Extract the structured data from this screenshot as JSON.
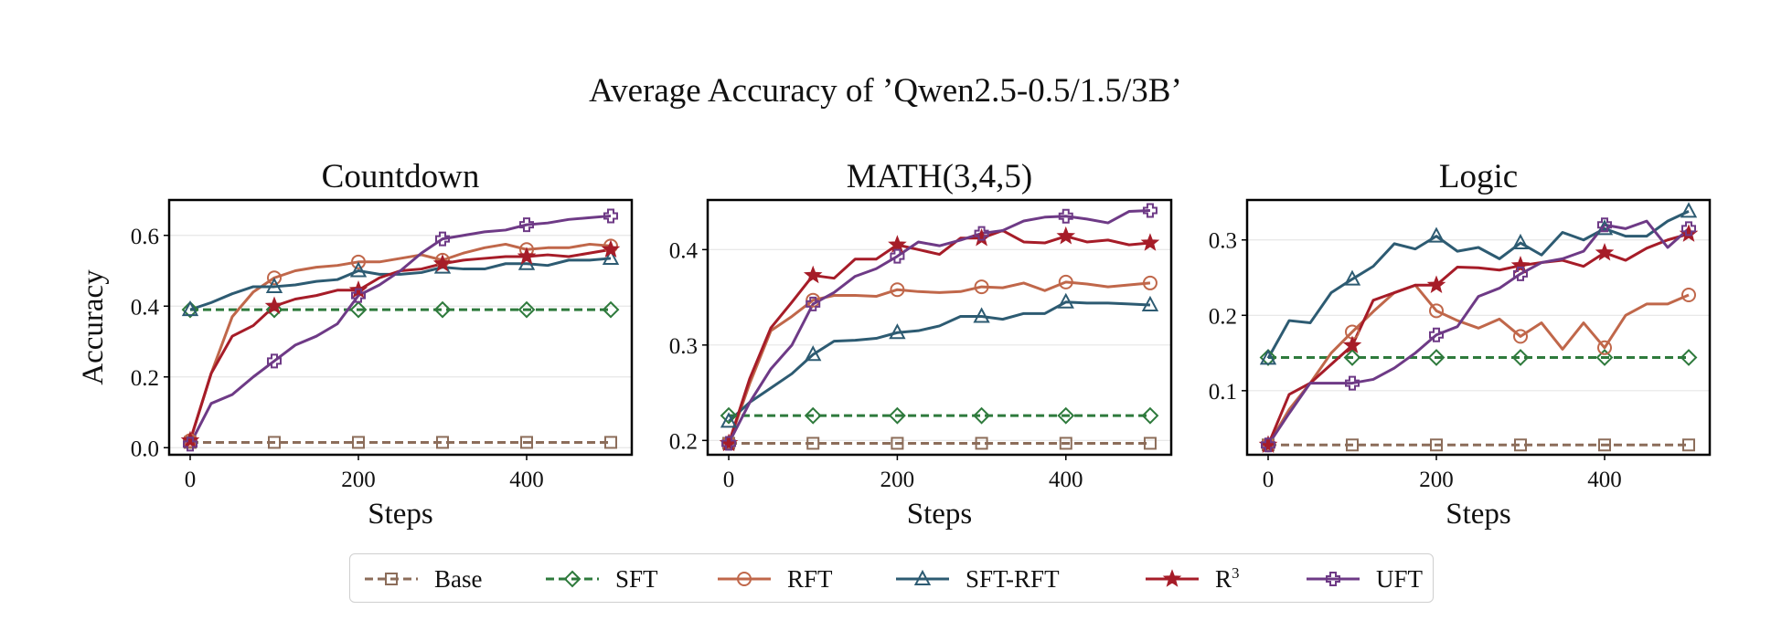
{
  "suptitle": "Average Accuracy of ’Qwen2.5-0.5/1.5/3B’",
  "legend": [
    {
      "label": "Base",
      "color": "#8c6d5a",
      "marker": "square",
      "dashed": true
    },
    {
      "label": "SFT",
      "color": "#2e7a3c",
      "marker": "diamond",
      "dashed": true
    },
    {
      "label": "RFT",
      "color": "#c0674a",
      "marker": "circle",
      "dashed": false
    },
    {
      "label": "SFT-RFT",
      "color": "#2d5b72",
      "marker": "triangle",
      "dashed": false
    },
    {
      "label": "R",
      "sup": "3",
      "color": "#a61c28",
      "marker": "star",
      "dashed": false
    },
    {
      "label": "UFT",
      "color": "#6e3a86",
      "marker": "plus",
      "dashed": false
    }
  ],
  "chart_data": [
    {
      "type": "line",
      "title": "Countdown",
      "xlabel": "Steps",
      "ylabel": "Accuracy",
      "xlim": [
        -25,
        525
      ],
      "ylim": [
        -0.02,
        0.7
      ],
      "xticks": [
        0,
        200,
        400
      ],
      "yticks": [
        0.0,
        0.2,
        0.4,
        0.6
      ],
      "ytick_labels": [
        "0.0",
        "0.2",
        "0.4",
        "0.6"
      ],
      "grid": true,
      "marker_x": [
        0,
        100,
        200,
        300,
        400,
        500
      ],
      "series": [
        {
          "name": "Base",
          "x": [
            0,
            100,
            200,
            300,
            400,
            500
          ],
          "values": [
            0.015,
            0.015,
            0.015,
            0.015,
            0.015,
            0.015
          ]
        },
        {
          "name": "SFT",
          "x": [
            0,
            100,
            200,
            300,
            400,
            500
          ],
          "values": [
            0.39,
            0.39,
            0.39,
            0.39,
            0.39,
            0.39
          ]
        },
        {
          "name": "RFT",
          "x": [
            0,
            25,
            50,
            75,
            100,
            125,
            150,
            175,
            200,
            225,
            250,
            275,
            300,
            325,
            350,
            375,
            400,
            425,
            450,
            475,
            500
          ],
          "values": [
            0.02,
            0.21,
            0.37,
            0.44,
            0.48,
            0.5,
            0.51,
            0.515,
            0.525,
            0.525,
            0.535,
            0.545,
            0.53,
            0.55,
            0.565,
            0.575,
            0.56,
            0.565,
            0.565,
            0.575,
            0.57
          ]
        },
        {
          "name": "SFT-RFT",
          "x": [
            0,
            25,
            50,
            75,
            100,
            125,
            150,
            175,
            200,
            225,
            250,
            275,
            300,
            325,
            350,
            375,
            400,
            425,
            450,
            475,
            500
          ],
          "values": [
            0.39,
            0.41,
            0.435,
            0.455,
            0.455,
            0.46,
            0.47,
            0.475,
            0.5,
            0.49,
            0.49,
            0.495,
            0.51,
            0.505,
            0.505,
            0.52,
            0.52,
            0.515,
            0.53,
            0.53,
            0.535
          ]
        },
        {
          "name": "R3",
          "x": [
            0,
            25,
            50,
            75,
            100,
            125,
            150,
            175,
            200,
            225,
            250,
            275,
            300,
            325,
            350,
            375,
            400,
            425,
            450,
            475,
            500
          ],
          "values": [
            0.02,
            0.21,
            0.315,
            0.345,
            0.4,
            0.42,
            0.43,
            0.445,
            0.445,
            0.48,
            0.5,
            0.505,
            0.52,
            0.53,
            0.535,
            0.54,
            0.54,
            0.545,
            0.54,
            0.55,
            0.56
          ]
        },
        {
          "name": "UFT",
          "x": [
            0,
            25,
            50,
            75,
            100,
            125,
            150,
            175,
            200,
            225,
            250,
            275,
            300,
            325,
            350,
            375,
            400,
            425,
            450,
            475,
            500
          ],
          "values": [
            0.01,
            0.125,
            0.15,
            0.2,
            0.245,
            0.29,
            0.315,
            0.35,
            0.43,
            0.46,
            0.5,
            0.55,
            0.59,
            0.6,
            0.61,
            0.615,
            0.63,
            0.635,
            0.645,
            0.65,
            0.655
          ]
        }
      ]
    },
    {
      "type": "line",
      "title": "MATH(3,4,5)",
      "xlabel": "Steps",
      "ylabel": "",
      "xlim": [
        -25,
        525
      ],
      "ylim": [
        0.185,
        0.452
      ],
      "xticks": [
        0,
        200,
        400
      ],
      "yticks": [
        0.2,
        0.3,
        0.4
      ],
      "ytick_labels": [
        "0.2",
        "0.3",
        "0.4"
      ],
      "grid": true,
      "marker_x": [
        0,
        100,
        200,
        300,
        400,
        500
      ],
      "series": [
        {
          "name": "Base",
          "x": [
            0,
            100,
            200,
            300,
            400,
            500
          ],
          "values": [
            0.197,
            0.197,
            0.197,
            0.197,
            0.197,
            0.197
          ]
        },
        {
          "name": "SFT",
          "x": [
            0,
            100,
            200,
            300,
            400,
            500
          ],
          "values": [
            0.226,
            0.226,
            0.226,
            0.226,
            0.226,
            0.226
          ]
        },
        {
          "name": "RFT",
          "x": [
            0,
            25,
            50,
            75,
            100,
            125,
            150,
            175,
            200,
            225,
            250,
            275,
            300,
            325,
            350,
            375,
            400,
            425,
            450,
            475,
            500
          ],
          "values": [
            0.197,
            0.26,
            0.315,
            0.33,
            0.347,
            0.352,
            0.352,
            0.351,
            0.358,
            0.356,
            0.355,
            0.356,
            0.361,
            0.36,
            0.365,
            0.357,
            0.366,
            0.364,
            0.361,
            0.363,
            0.365
          ]
        },
        {
          "name": "SFT-RFT",
          "x": [
            0,
            25,
            50,
            75,
            100,
            125,
            150,
            175,
            200,
            225,
            250,
            275,
            300,
            325,
            350,
            375,
            400,
            425,
            450,
            475,
            500
          ],
          "values": [
            0.22,
            0.24,
            0.255,
            0.27,
            0.29,
            0.304,
            0.305,
            0.307,
            0.313,
            0.315,
            0.32,
            0.33,
            0.33,
            0.327,
            0.333,
            0.333,
            0.345,
            0.344,
            0.344,
            0.343,
            0.342
          ]
        },
        {
          "name": "R3",
          "x": [
            0,
            25,
            50,
            75,
            100,
            125,
            150,
            175,
            200,
            225,
            250,
            275,
            300,
            325,
            350,
            375,
            400,
            425,
            450,
            475,
            500
          ],
          "values": [
            0.197,
            0.265,
            0.318,
            0.345,
            0.373,
            0.37,
            0.39,
            0.39,
            0.405,
            0.4,
            0.395,
            0.412,
            0.412,
            0.42,
            0.408,
            0.407,
            0.414,
            0.408,
            0.41,
            0.405,
            0.407
          ]
        },
        {
          "name": "UFT",
          "x": [
            0,
            25,
            50,
            75,
            100,
            125,
            150,
            175,
            200,
            225,
            250,
            275,
            300,
            325,
            350,
            375,
            400,
            425,
            450,
            475,
            500
          ],
          "values": [
            0.197,
            0.24,
            0.275,
            0.3,
            0.343,
            0.355,
            0.372,
            0.38,
            0.393,
            0.408,
            0.404,
            0.41,
            0.417,
            0.42,
            0.43,
            0.434,
            0.435,
            0.432,
            0.428,
            0.44,
            0.441
          ]
        }
      ]
    },
    {
      "type": "line",
      "title": "Logic",
      "xlabel": "Steps",
      "ylabel": "",
      "xlim": [
        -25,
        525
      ],
      "ylim": [
        0.015,
        0.353
      ],
      "xticks": [
        0,
        200,
        400
      ],
      "yticks": [
        0.1,
        0.2,
        0.3
      ],
      "ytick_labels": [
        "0.1",
        "0.2",
        "0.3"
      ],
      "grid": true,
      "marker_x": [
        0,
        100,
        200,
        300,
        400,
        500
      ],
      "series": [
        {
          "name": "Base",
          "x": [
            0,
            100,
            200,
            300,
            400,
            500
          ],
          "values": [
            0.028,
            0.028,
            0.028,
            0.028,
            0.028,
            0.028
          ]
        },
        {
          "name": "SFT",
          "x": [
            0,
            100,
            200,
            300,
            400,
            500
          ],
          "values": [
            0.144,
            0.144,
            0.144,
            0.144,
            0.144,
            0.144
          ]
        },
        {
          "name": "RFT",
          "x": [
            0,
            25,
            50,
            75,
            100,
            125,
            150,
            175,
            200,
            225,
            250,
            275,
            300,
            325,
            350,
            375,
            400,
            425,
            450,
            475,
            500
          ],
          "values": [
            0.028,
            0.075,
            0.11,
            0.15,
            0.178,
            0.205,
            0.23,
            0.24,
            0.206,
            0.193,
            0.183,
            0.195,
            0.172,
            0.19,
            0.155,
            0.19,
            0.157,
            0.2,
            0.215,
            0.215,
            0.227
          ]
        },
        {
          "name": "SFT-RFT",
          "x": [
            0,
            25,
            50,
            75,
            100,
            125,
            150,
            175,
            200,
            225,
            250,
            275,
            300,
            325,
            350,
            375,
            400,
            425,
            450,
            475,
            500
          ],
          "values": [
            0.143,
            0.193,
            0.19,
            0.23,
            0.248,
            0.265,
            0.295,
            0.288,
            0.305,
            0.285,
            0.29,
            0.275,
            0.296,
            0.28,
            0.31,
            0.3,
            0.315,
            0.305,
            0.305,
            0.325,
            0.338
          ]
        },
        {
          "name": "R3",
          "x": [
            0,
            25,
            50,
            75,
            100,
            125,
            150,
            175,
            200,
            225,
            250,
            275,
            300,
            325,
            350,
            375,
            400,
            425,
            450,
            475,
            500
          ],
          "values": [
            0.028,
            0.095,
            0.11,
            0.135,
            0.16,
            0.22,
            0.23,
            0.24,
            0.24,
            0.264,
            0.263,
            0.26,
            0.266,
            0.27,
            0.273,
            0.265,
            0.283,
            0.273,
            0.289,
            0.3,
            0.308
          ]
        },
        {
          "name": "UFT",
          "x": [
            0,
            25,
            50,
            75,
            100,
            125,
            150,
            175,
            200,
            225,
            250,
            275,
            300,
            325,
            350,
            375,
            400,
            425,
            450,
            475,
            500
          ],
          "values": [
            0.028,
            0.07,
            0.11,
            0.11,
            0.11,
            0.115,
            0.13,
            0.15,
            0.174,
            0.185,
            0.225,
            0.236,
            0.255,
            0.27,
            0.275,
            0.285,
            0.32,
            0.315,
            0.325,
            0.29,
            0.315
          ]
        }
      ]
    }
  ]
}
